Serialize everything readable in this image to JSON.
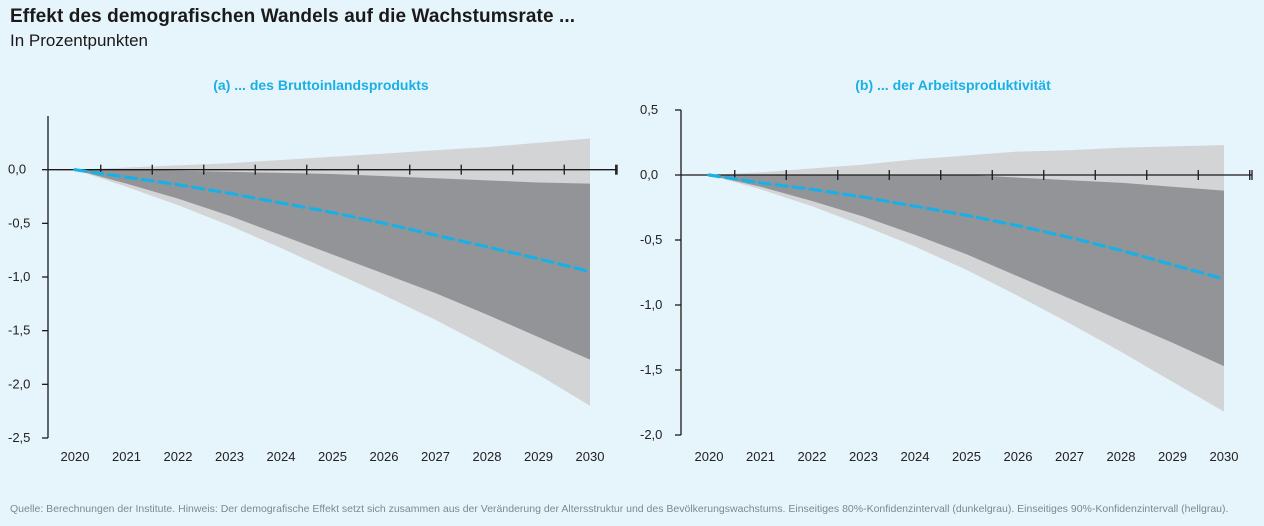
{
  "title": "Effekt des demografischen Wandels auf die Wachstumsrate ...",
  "subtitle": "In Prozentpunkten",
  "footer": "Quelle: Berechnungen der Institute. Hinweis: Der demografische Effekt setzt sich zusammen aus der Veränderung der Altersstruktur und des Bevölkerungswachstums. Einseitiges 80%-Konfidenzintervall (dunkelgrau). Einseitiges 90%-Konfidenzintervall (hellgrau).",
  "colors": {
    "line": "#1ab0e6",
    "band80": "#939497",
    "band90": "#d3d4d5",
    "axis": "#1a1a1a",
    "background": "#e6f4fb"
  },
  "chart_data": [
    {
      "type": "area",
      "title": "(a) ... des Bruttoinlandsprodukts",
      "x": [
        2020,
        2021,
        2022,
        2023,
        2024,
        2025,
        2026,
        2027,
        2028,
        2029,
        2030
      ],
      "xlim": [
        2020,
        2030
      ],
      "ylim": [
        -2.5,
        0.5
      ],
      "yticks": [
        0.0,
        -0.5,
        -1.0,
        -1.5,
        -2.0,
        -2.5
      ],
      "ytick_labels": [
        "0,0",
        "-0,5",
        "-1,0",
        "-1,5",
        "-2,0",
        "-2,5"
      ],
      "xtick_labels": [
        "2020",
        "2021",
        "2022",
        "2023",
        "2024",
        "2025",
        "2026",
        "2027",
        "2028",
        "2029",
        "2030"
      ],
      "series": [
        {
          "role": "band90_upper",
          "values": [
            0.0,
            0.02,
            0.04,
            0.06,
            0.09,
            0.12,
            0.15,
            0.18,
            0.21,
            0.25,
            0.29
          ]
        },
        {
          "role": "band80_upper",
          "values": [
            0.0,
            0.0,
            -0.01,
            -0.02,
            -0.03,
            -0.04,
            -0.06,
            -0.08,
            -0.1,
            -0.12,
            -0.13
          ]
        },
        {
          "role": "line",
          "values": [
            0.0,
            -0.07,
            -0.14,
            -0.22,
            -0.31,
            -0.4,
            -0.5,
            -0.61,
            -0.72,
            -0.83,
            -0.95
          ]
        },
        {
          "role": "band80_lower",
          "values": [
            0.0,
            -0.13,
            -0.27,
            -0.43,
            -0.61,
            -0.79,
            -0.97,
            -1.15,
            -1.35,
            -1.56,
            -1.77
          ]
        },
        {
          "role": "band90_lower",
          "values": [
            0.0,
            -0.16,
            -0.33,
            -0.52,
            -0.73,
            -0.95,
            -1.17,
            -1.4,
            -1.65,
            -1.91,
            -2.2
          ]
        }
      ]
    },
    {
      "type": "area",
      "title": "(b) ... der Arbeitsproduktivität",
      "x": [
        2020,
        2021,
        2022,
        2023,
        2024,
        2025,
        2026,
        2027,
        2028,
        2029,
        2030
      ],
      "xlim": [
        2020,
        2030
      ],
      "ylim": [
        -2.0,
        0.5
      ],
      "yticks": [
        0.5,
        0.0,
        -0.5,
        -1.0,
        -1.5,
        -2.0
      ],
      "ytick_labels": [
        "0,5",
        "0,0",
        "-0,5",
        "-1,0",
        "-1,5",
        "-2,0"
      ],
      "xtick_labels": [
        "2020",
        "2021",
        "2022",
        "2023",
        "2024",
        "2025",
        "2026",
        "2027",
        "2028",
        "2029",
        "2030"
      ],
      "series": [
        {
          "role": "band90_upper",
          "values": [
            0.0,
            0.02,
            0.05,
            0.08,
            0.12,
            0.15,
            0.18,
            0.19,
            0.21,
            0.22,
            0.23
          ]
        },
        {
          "role": "band80_upper",
          "values": [
            0.0,
            0.0,
            0.0,
            0.0,
            0.0,
            0.0,
            -0.02,
            -0.04,
            -0.06,
            -0.09,
            -0.12
          ]
        },
        {
          "role": "line",
          "values": [
            0.0,
            -0.06,
            -0.11,
            -0.17,
            -0.24,
            -0.31,
            -0.39,
            -0.48,
            -0.58,
            -0.69,
            -0.8
          ]
        },
        {
          "role": "band80_lower",
          "values": [
            0.0,
            -0.09,
            -0.2,
            -0.32,
            -0.46,
            -0.61,
            -0.78,
            -0.95,
            -1.12,
            -1.29,
            -1.47
          ]
        },
        {
          "role": "band90_lower",
          "values": [
            0.0,
            -0.11,
            -0.24,
            -0.39,
            -0.55,
            -0.73,
            -0.93,
            -1.14,
            -1.36,
            -1.59,
            -1.82
          ]
        }
      ]
    }
  ]
}
